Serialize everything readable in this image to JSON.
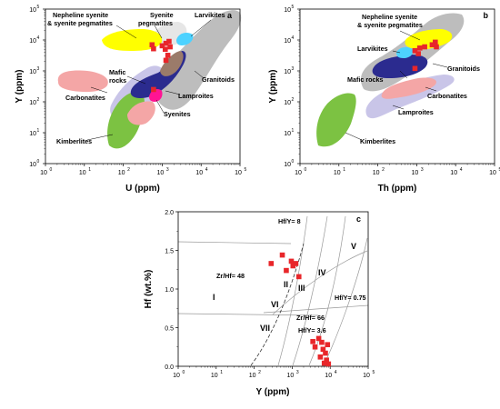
{
  "panels": {
    "a": {
      "label": "a",
      "xlabel": "U (ppm)",
      "ylabel": "Y (ppm)",
      "x_ticks": [
        "10",
        "10",
        "10",
        "10",
        "10",
        "10"
      ],
      "x_exps": [
        "0",
        "1",
        "2",
        "3",
        "4",
        "5"
      ],
      "y_ticks": [
        "10",
        "10",
        "10",
        "10",
        "10",
        "10"
      ],
      "y_exps": [
        "0",
        "1",
        "2",
        "3",
        "4",
        "5"
      ],
      "fields": [
        {
          "name": "Nepheline syenite & syenite pegmatites",
          "color": "#ffff00"
        },
        {
          "name": "Syenite pegmatites",
          "color": "#e8e8e8"
        },
        {
          "name": "Larvikites",
          "color": "#4dd2ff"
        },
        {
          "name": "Granitoids",
          "color": "#bfbfbf"
        },
        {
          "name": "Mafic rocks",
          "color": "#2b2b8f"
        },
        {
          "name": "Carbonatites",
          "color": "#f4a6a6"
        },
        {
          "name": "Lamproites",
          "color": "#c6c2e6"
        },
        {
          "name": "Syenites",
          "color": "#ff1493"
        },
        {
          "name": "Kimberlites",
          "color": "#7cc242"
        }
      ],
      "labels": [
        "Nepheline syenite",
        "& syenite pegmatites",
        "Syenite",
        "pegmatites",
        "Larvikites",
        "Granitoids",
        "Mafic",
        "rocks",
        "Carbonatites",
        "Lamproites",
        "Syenites",
        "Kimberlites"
      ]
    },
    "b": {
      "label": "b",
      "xlabel": "Th (ppm)",
      "ylabel": "Y (ppm)",
      "x_ticks": [
        "10",
        "10",
        "10",
        "10",
        "10",
        "10"
      ],
      "x_exps": [
        "0",
        "1",
        "2",
        "3",
        "4",
        "5"
      ],
      "y_ticks": [
        "10",
        "10",
        "10",
        "10",
        "10",
        "10"
      ],
      "y_exps": [
        "0",
        "1",
        "2",
        "3",
        "4",
        "5"
      ],
      "labels": [
        "Nepheline syenite",
        "& syenite pegmatites",
        "Larvikites",
        "Mafic rocks",
        "Granitoids",
        "Carbonatites",
        "Lamproites",
        "Kimberlites"
      ]
    },
    "c": {
      "label": "c",
      "xlabel": "Y (ppm)",
      "ylabel": "Hf (wt.%)",
      "x_ticks": [
        "10",
        "10",
        "10",
        "10",
        "10",
        "10"
      ],
      "x_exps": [
        "0",
        "1",
        "2",
        "3",
        "4",
        "5"
      ],
      "y_ticks": [
        "0.0",
        "0.5",
        "1.0",
        "1.5",
        "2.0"
      ],
      "minor_y_ticks": [
        "0.25",
        "0.75",
        "1.25",
        "1.75"
      ],
      "line_labels": [
        "Hf/Y= 8",
        "Zr/Hf= 48",
        "Hf/Y= 0.75",
        "Zr/Hf= 66",
        "Hf/Y= 3.6"
      ],
      "field_labels": [
        "I",
        "II",
        "III",
        "IV",
        "V",
        "VI",
        "VII"
      ]
    }
  },
  "chart_data": [
    {
      "panel": "a",
      "type": "scatter",
      "xlabel": "U (ppm)",
      "ylabel": "Y (ppm)",
      "x_scale": "log",
      "y_scale": "log",
      "xlim": [
        1,
        100000
      ],
      "ylim": [
        1,
        100000
      ],
      "series": [
        {
          "marker": "square",
          "color": "#e8262a",
          "points": [
            [
              550,
              7000
            ],
            [
              600,
              5200
            ],
            [
              1000,
              6500
            ],
            [
              1250,
              7800
            ],
            [
              1500,
              9000
            ],
            [
              1600,
              6000
            ],
            [
              1200,
              5000
            ],
            [
              1400,
              3200
            ],
            [
              1250,
              2200
            ],
            [
              600,
              250
            ]
          ]
        }
      ]
    },
    {
      "panel": "b",
      "type": "scatter",
      "xlabel": "Th (ppm)",
      "ylabel": "Y (ppm)",
      "x_scale": "log",
      "y_scale": "log",
      "xlim": [
        1,
        100000
      ],
      "ylim": [
        1,
        100000
      ],
      "series": [
        {
          "marker": "square",
          "color": "#e8262a",
          "points": [
            [
              900,
              4500
            ],
            [
              1200,
              5500
            ],
            [
              1600,
              6000
            ],
            [
              2500,
              7000
            ],
            [
              3000,
              8500
            ],
            [
              3200,
              6000
            ],
            [
              1100,
              3600
            ],
            [
              900,
              1200
            ]
          ]
        }
      ]
    },
    {
      "panel": "c",
      "type": "scatter",
      "xlabel": "Y (ppm)",
      "ylabel": "Hf (wt.%)",
      "x_scale": "log",
      "y_scale": "linear",
      "xlim": [
        1,
        100000
      ],
      "ylim": [
        0,
        2
      ],
      "series": [
        {
          "marker": "square",
          "color": "#e8262a",
          "points": [
            [
              280,
              1.33
            ],
            [
              550,
              1.44
            ],
            [
              700,
              1.24
            ],
            [
              950,
              1.36
            ],
            [
              1050,
              1.3
            ],
            [
              1250,
              1.33
            ],
            [
              1500,
              1.16
            ],
            [
              3500,
              0.32
            ],
            [
              4000,
              0.25
            ],
            [
              5000,
              0.36
            ],
            [
              6000,
              0.31
            ],
            [
              6500,
              0.22
            ],
            [
              5500,
              0.12
            ],
            [
              7500,
              0.17
            ],
            [
              8000,
              0.08
            ],
            [
              8500,
              0.28
            ],
            [
              9000,
              0.03
            ],
            [
              7000,
              0.04
            ]
          ]
        }
      ]
    }
  ]
}
